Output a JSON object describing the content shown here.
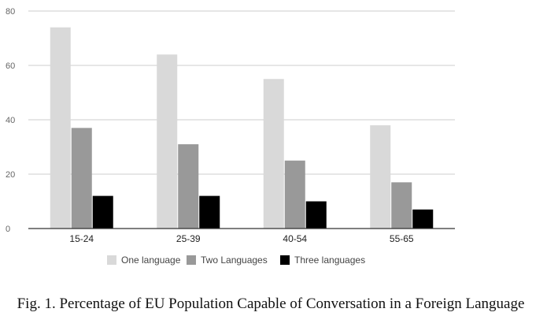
{
  "chart_data": {
    "type": "bar",
    "title": "",
    "xlabel": "",
    "ylabel": "",
    "ylim": [
      0,
      80
    ],
    "yticks": [
      0,
      20,
      40,
      60,
      80
    ],
    "grid": true,
    "legend_position": "bottom",
    "categories": [
      "15-24",
      "25-39",
      "40-54",
      "55-65"
    ],
    "series": [
      {
        "name": "One language",
        "color": "#d9d9d9",
        "values": [
          74,
          64,
          55,
          38
        ]
      },
      {
        "name": "Two Languages",
        "color": "#999999",
        "values": [
          37,
          31,
          25,
          17
        ]
      },
      {
        "name": "Three languages",
        "color": "#000000",
        "values": [
          12,
          12,
          10,
          7
        ]
      }
    ]
  },
  "caption": "Fig. 1. Percentage of EU Population Capable of Conversation in a Foreign Language"
}
